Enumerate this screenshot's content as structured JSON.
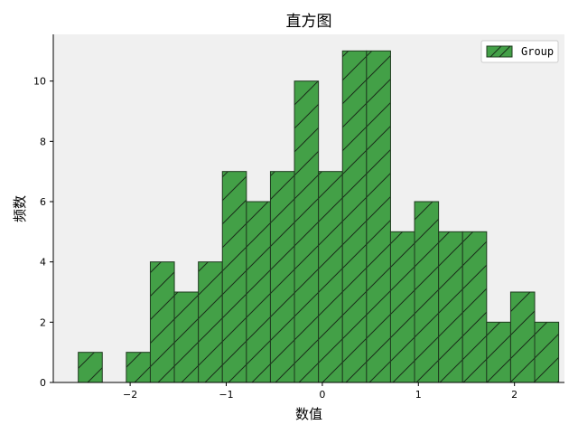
{
  "chart_data": {
    "type": "bar",
    "subtype": "histogram",
    "title": "直方图",
    "xlabel": "数值",
    "ylabel": "频数",
    "bins": [
      [
        -2.54,
        -2.29
      ],
      [
        -2.29,
        -2.04
      ],
      [
        -2.04,
        -1.79
      ],
      [
        -1.79,
        -1.54
      ],
      [
        -1.54,
        -1.29
      ],
      [
        -1.29,
        -1.04
      ],
      [
        -1.04,
        -0.79
      ],
      [
        -0.79,
        -0.54
      ],
      [
        -0.54,
        -0.29
      ],
      [
        -0.29,
        -0.04
      ],
      [
        -0.04,
        0.21
      ],
      [
        0.21,
        0.46
      ],
      [
        0.46,
        0.71
      ],
      [
        0.71,
        0.96
      ],
      [
        0.96,
        1.21
      ],
      [
        1.21,
        1.46
      ],
      [
        1.46,
        1.71
      ],
      [
        1.71,
        1.96
      ],
      [
        1.96,
        2.21
      ],
      [
        2.21,
        2.46
      ]
    ],
    "values": [
      1,
      0,
      1,
      4,
      3,
      4,
      7,
      6,
      7,
      10,
      7,
      11,
      11,
      5,
      6,
      5,
      5,
      2,
      3,
      2
    ],
    "xlim": [
      -2.8,
      2.52
    ],
    "ylim": [
      0,
      11.55
    ],
    "xticks": [
      -2,
      -1,
      0,
      1,
      2
    ],
    "xtick_labels": [
      "−2",
      "−1",
      "0",
      "1",
      "2"
    ],
    "yticks": [
      0,
      2,
      4,
      6,
      8,
      10
    ],
    "ytick_labels": [
      "0",
      "2",
      "4",
      "6",
      "8",
      "10"
    ],
    "series": [
      {
        "name": "Group"
      }
    ],
    "legend": "top-right",
    "grid": false,
    "colors": {
      "bar_fill": "#43a047",
      "bar_edge": "#1f3b1f",
      "hatch": "#1a2e1a",
      "plot_background": "#f0f0f0"
    }
  }
}
